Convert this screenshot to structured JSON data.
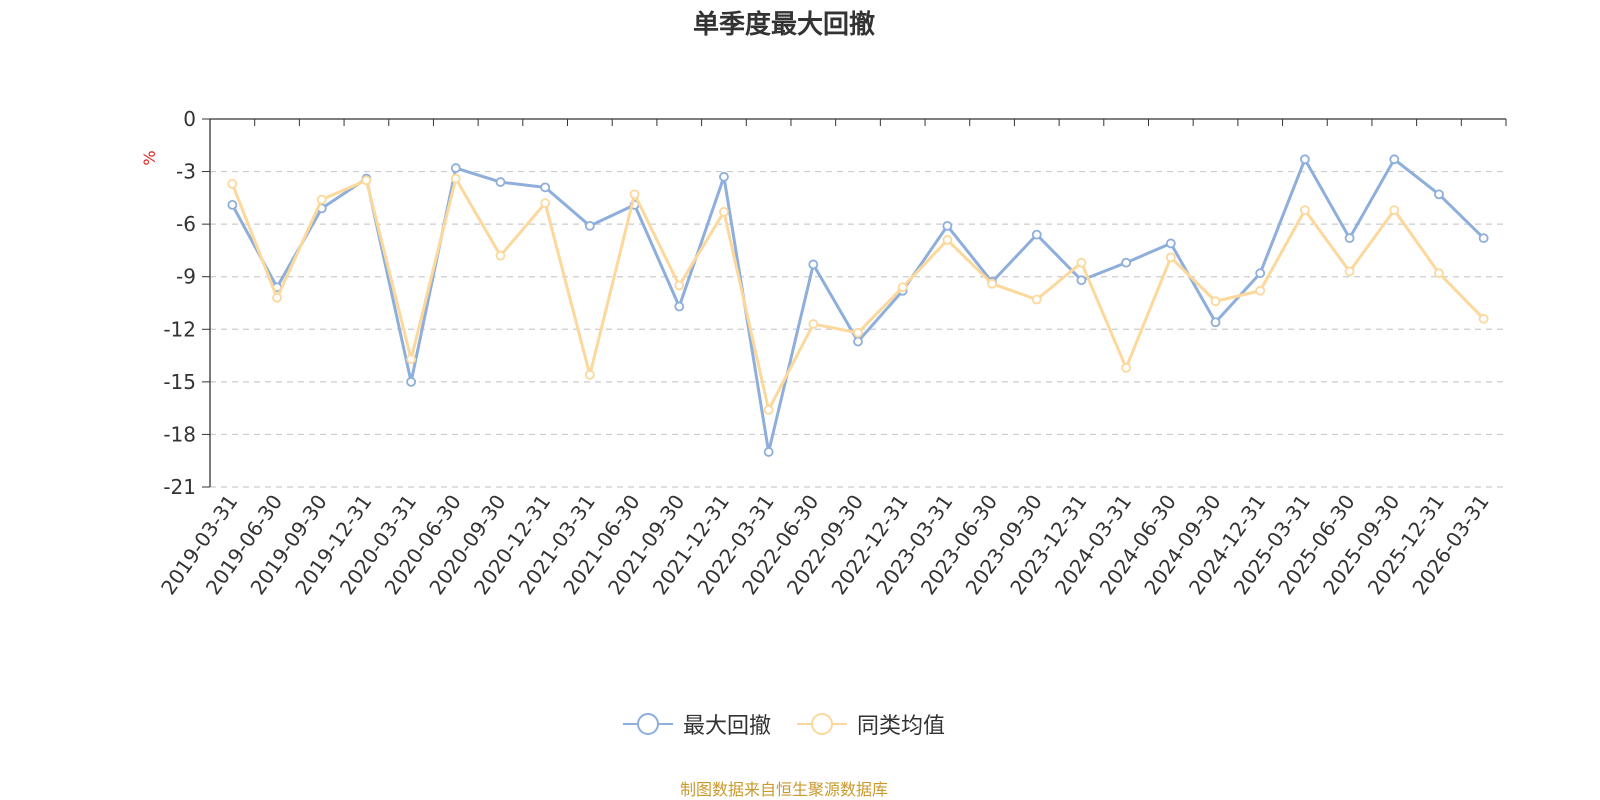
{
  "chart_data": {
    "type": "line",
    "title": "单季度最大回撤",
    "ylabel": "%",
    "xlabel": "",
    "ylim": [
      -21,
      0
    ],
    "yticks": [
      0,
      -3,
      -6,
      -9,
      -12,
      -15,
      -18,
      -21
    ],
    "grid": true,
    "legend_position": "bottom-center",
    "categories": [
      "2019-03-31",
      "2019-06-30",
      "2019-09-30",
      "2019-12-31",
      "2020-03-31",
      "2020-06-30",
      "2020-09-30",
      "2020-12-31",
      "2021-03-31",
      "2021-06-30",
      "2021-09-30",
      "2021-12-31",
      "2022-03-31",
      "2022-06-30",
      "2022-09-30",
      "2022-12-31",
      "2023-03-31",
      "2023-06-30",
      "2023-09-30",
      "2023-12-31",
      "2024-03-31",
      "2024-06-30",
      "2024-09-30",
      "2024-12-31",
      "2025-03-31",
      "2025-06-30",
      "2025-09-30",
      "2025-12-31",
      "2026-03-31"
    ],
    "series": [
      {
        "name": "最大回撤",
        "color": "#8eaedb",
        "values": [
          -4.9,
          -9.6,
          -5.1,
          -3.4,
          -15.0,
          -2.8,
          -3.6,
          -3.9,
          -6.1,
          -4.9,
          -10.7,
          -3.3,
          -19.0,
          -8.3,
          -12.7,
          -9.8,
          -6.1,
          -9.3,
          -6.6,
          -9.2,
          -8.2,
          -7.1,
          -11.6,
          -8.8,
          -2.3,
          -6.8,
          -2.3,
          -4.3,
          -6.8
        ]
      },
      {
        "name": "同类均值",
        "color": "#fcd89c",
        "values": [
          -3.7,
          -10.2,
          -4.6,
          -3.5,
          -13.7,
          -3.4,
          -7.8,
          -4.8,
          -14.6,
          -4.3,
          -9.5,
          -5.3,
          -16.6,
          -11.7,
          -12.2,
          -9.6,
          -6.9,
          -9.4,
          -10.3,
          -8.2,
          -14.2,
          -7.9,
          -10.4,
          -9.8,
          -5.2,
          -8.7,
          -5.2,
          -8.8,
          -11.4
        ]
      }
    ],
    "source": "制图数据来自恒生聚源数据库",
    "source_color": "#c99a2e",
    "ylabel_color": "#e02020"
  }
}
